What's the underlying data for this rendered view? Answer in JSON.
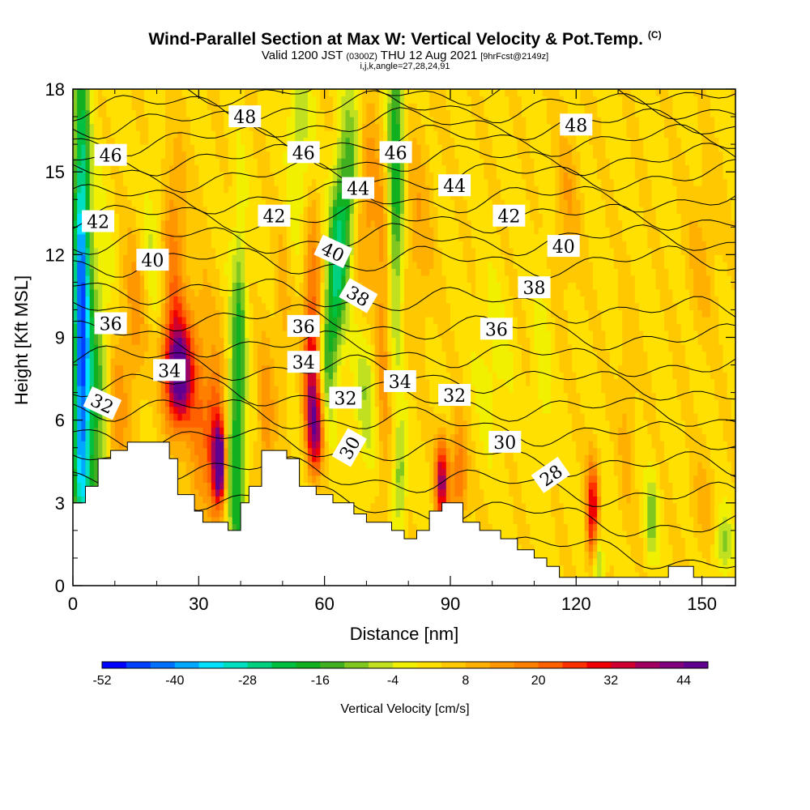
{
  "header": {
    "title": "Wind-Parallel Section at Max W: Vertical Velocity & Pot.Temp.",
    "copyright": "(C)",
    "valid_prefix": "Valid 1200 JST",
    "valid_utc": "(0300Z)",
    "valid_date": "THU 12 Aug 2021",
    "forecast_info": "[9hrFcst@2149z]",
    "params": "i,j,k,angle=27,28,24,91"
  },
  "chart_data": {
    "type": "heatmap",
    "xlabel": "Distance [nm]",
    "ylabel": "Height [Kft MSL]",
    "xlim": [
      0,
      158
    ],
    "ylim": [
      0,
      18
    ],
    "x_ticks": [
      0,
      30,
      60,
      90,
      120,
      150
    ],
    "y_ticks": [
      0,
      3,
      6,
      9,
      12,
      15,
      18
    ],
    "colorbar": {
      "title": "Vertical Velocity [cm/s]",
      "min": -52,
      "max": 48,
      "step": 4,
      "tick_labels": [
        "-52",
        "-40",
        "-28",
        "-16",
        "-4",
        "8",
        "20",
        "32",
        "44"
      ],
      "colors": [
        "#0000ff",
        "#0040ff",
        "#0070ff",
        "#00a8ff",
        "#00e0ff",
        "#00e0c0",
        "#00d080",
        "#00c040",
        "#10b020",
        "#40b020",
        "#80c820",
        "#c0e020",
        "#f0f000",
        "#ffe000",
        "#ffc800",
        "#ffb000",
        "#ff9800",
        "#ff8000",
        "#ff6000",
        "#ff3000",
        "#f00000",
        "#d00030",
        "#a00060",
        "#800080",
        "#600090"
      ]
    },
    "terrain": [
      [
        0,
        3
      ],
      [
        3,
        3
      ],
      [
        3,
        3.6
      ],
      [
        6,
        3.6
      ],
      [
        6,
        4.6
      ],
      [
        9,
        4.6
      ],
      [
        9,
        4.9
      ],
      [
        13,
        4.9
      ],
      [
        13,
        5.2
      ],
      [
        23,
        5.2
      ],
      [
        23,
        4.6
      ],
      [
        25,
        4.6
      ],
      [
        25,
        3.3
      ],
      [
        29,
        3.3
      ],
      [
        29,
        2.7
      ],
      [
        31,
        2.7
      ],
      [
        31,
        2.3
      ],
      [
        37,
        2.3
      ],
      [
        37,
        2
      ],
      [
        40,
        2
      ],
      [
        40,
        3
      ],
      [
        42,
        3
      ],
      [
        42,
        3.6
      ],
      [
        45,
        3.6
      ],
      [
        45,
        4.9
      ],
      [
        51,
        4.9
      ],
      [
        51,
        4.6
      ],
      [
        54,
        4.6
      ],
      [
        54,
        3.6
      ],
      [
        58,
        3.6
      ],
      [
        58,
        3.3
      ],
      [
        62,
        3.3
      ],
      [
        62,
        3
      ],
      [
        67,
        3
      ],
      [
        67,
        2.6
      ],
      [
        70,
        2.6
      ],
      [
        70,
        2.3
      ],
      [
        76,
        2.3
      ],
      [
        76,
        2
      ],
      [
        79,
        2
      ],
      [
        79,
        1.7
      ],
      [
        82,
        1.7
      ],
      [
        82,
        2
      ],
      [
        85,
        2
      ],
      [
        85,
        2.7
      ],
      [
        88,
        2.7
      ],
      [
        88,
        3
      ],
      [
        93,
        3
      ],
      [
        93,
        2.3
      ],
      [
        97,
        2.3
      ],
      [
        97,
        2
      ],
      [
        102,
        2
      ],
      [
        102,
        1.7
      ],
      [
        106,
        1.7
      ],
      [
        106,
        1.3
      ],
      [
        110,
        1.3
      ],
      [
        110,
        1
      ],
      [
        113,
        1
      ],
      [
        113,
        0.7
      ],
      [
        116,
        0.7
      ],
      [
        116,
        0.3
      ],
      [
        142,
        0.3
      ],
      [
        142,
        0.7
      ],
      [
        148,
        0.7
      ],
      [
        148,
        0.3
      ],
      [
        158,
        0.3
      ]
    ],
    "isentropes": [
      {
        "theta": 28,
        "label_at": [
          114,
          4.0
        ],
        "label_angle": -35
      },
      {
        "theta": 30,
        "label_at": [
          103,
          5.2
        ],
        "label_angle": 0
      },
      {
        "theta": 30,
        "label_at": [
          66,
          5.0
        ],
        "label_angle": -60
      },
      {
        "theta": 32,
        "label_at": [
          7,
          6.6
        ],
        "label_angle": 25
      },
      {
        "theta": 32,
        "label_at": [
          65,
          6.8
        ],
        "label_angle": 0
      },
      {
        "theta": 32,
        "label_at": [
          91,
          6.9
        ],
        "label_angle": 0
      },
      {
        "theta": 34,
        "label_at": [
          23,
          7.8
        ],
        "label_angle": 0
      },
      {
        "theta": 34,
        "label_at": [
          55,
          8.1
        ],
        "label_angle": 0
      },
      {
        "theta": 34,
        "label_at": [
          78,
          7.4
        ],
        "label_angle": 0
      },
      {
        "theta": 36,
        "label_at": [
          9,
          9.5
        ],
        "label_angle": 0
      },
      {
        "theta": 36,
        "label_at": [
          55,
          9.4
        ],
        "label_angle": 0
      },
      {
        "theta": 36,
        "label_at": [
          101,
          9.3
        ],
        "label_angle": 0
      },
      {
        "theta": 38,
        "label_at": [
          68,
          10.5
        ],
        "label_angle": 30
      },
      {
        "theta": 38,
        "label_at": [
          110,
          10.8
        ],
        "label_angle": 0
      },
      {
        "theta": 40,
        "label_at": [
          19,
          11.8
        ],
        "label_angle": 0
      },
      {
        "theta": 40,
        "label_at": [
          62,
          12.1
        ],
        "label_angle": 25
      },
      {
        "theta": 40,
        "label_at": [
          117,
          12.3
        ],
        "label_angle": 0
      },
      {
        "theta": 42,
        "label_at": [
          6,
          13.2
        ],
        "label_angle": 0
      },
      {
        "theta": 42,
        "label_at": [
          48,
          13.4
        ],
        "label_angle": 0
      },
      {
        "theta": 42,
        "label_at": [
          104,
          13.4
        ],
        "label_angle": 0
      },
      {
        "theta": 44,
        "label_at": [
          68,
          14.4
        ],
        "label_angle": 0
      },
      {
        "theta": 44,
        "label_at": [
          91,
          14.5
        ],
        "label_angle": 0
      },
      {
        "theta": 46,
        "label_at": [
          9,
          15.6
        ],
        "label_angle": 0
      },
      {
        "theta": 46,
        "label_at": [
          55,
          15.7
        ],
        "label_angle": 0
      },
      {
        "theta": 46,
        "label_at": [
          77,
          15.7
        ],
        "label_angle": 0
      },
      {
        "theta": 48,
        "label_at": [
          41,
          17.0
        ],
        "label_angle": 0
      },
      {
        "theta": 48,
        "label_at": [
          120,
          16.7
        ],
        "label_angle": 0
      }
    ]
  }
}
